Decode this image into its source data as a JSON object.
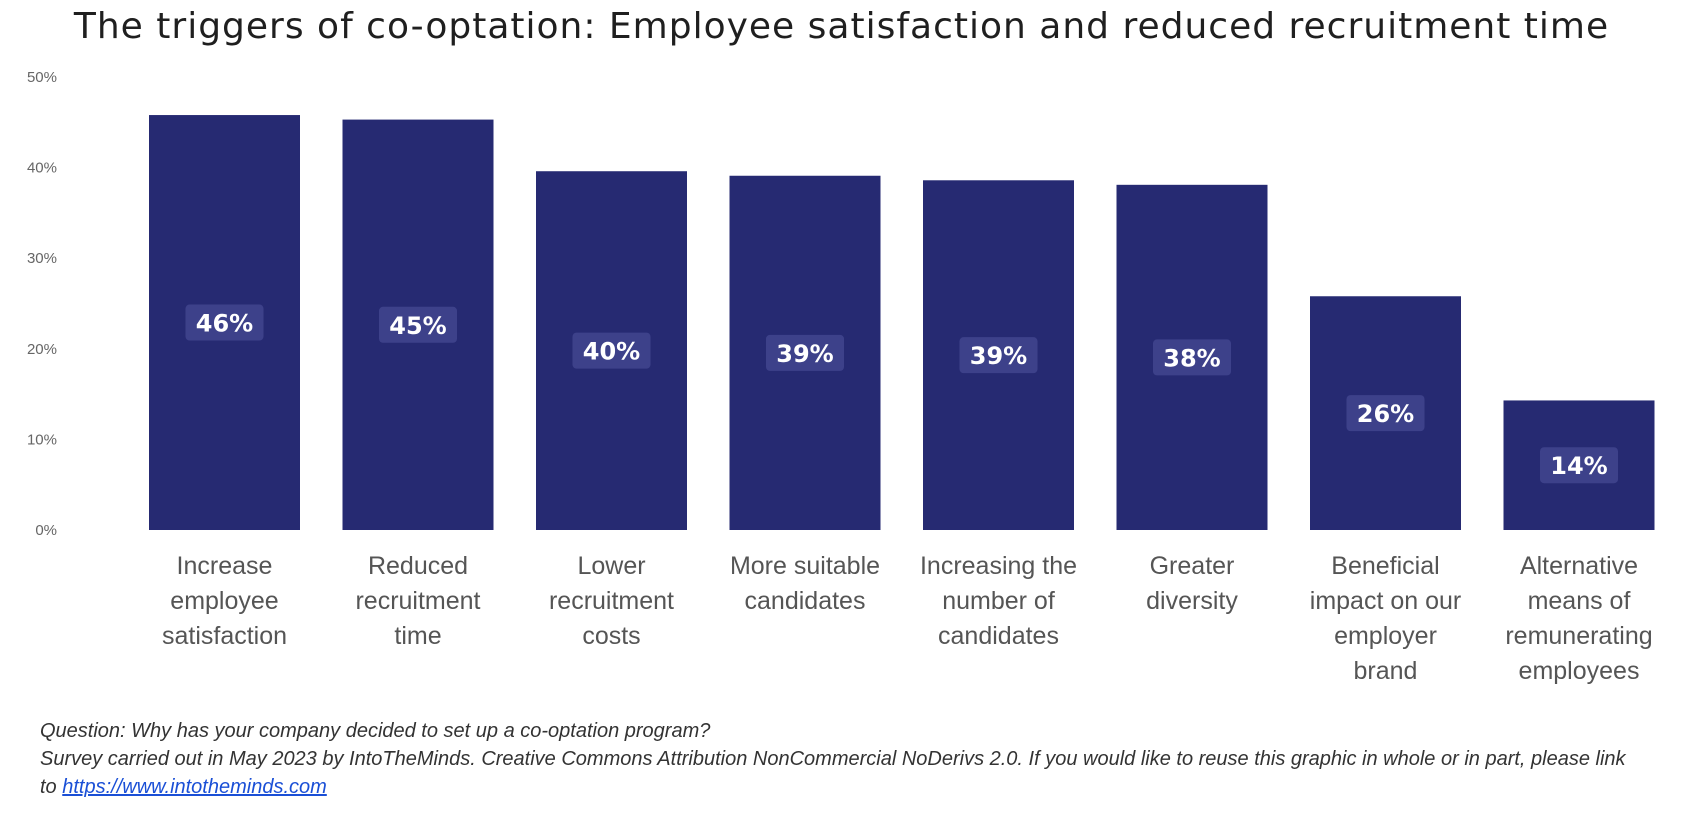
{
  "chart_data": {
    "type": "bar",
    "title": "The triggers of co-optation: Employee satisfaction and reduced recruitment time",
    "categories": [
      "Increase employee satisfaction",
      "Reduced recruitment time",
      "Lower recruitment costs",
      "More suitable candidates",
      "Increasing the number of candidates",
      "Greater diversity",
      "Beneficial impact on our employer brand",
      "Alternative means of remunerating employees"
    ],
    "category_lines": [
      [
        "Increase",
        "employee",
        "satisfaction"
      ],
      [
        "Reduced",
        "recruitment",
        "time"
      ],
      [
        "Lower",
        "recruitment",
        "costs"
      ],
      [
        "More suitable",
        "candidates"
      ],
      [
        "Increasing the",
        "number of",
        "candidates"
      ],
      [
        "Greater",
        "diversity"
      ],
      [
        "Beneficial",
        "impact on our",
        "employer",
        "brand"
      ],
      [
        "Alternative",
        "means of",
        "remunerating",
        "employees"
      ]
    ],
    "values": [
      45.8,
      45.3,
      39.6,
      39.1,
      38.6,
      38.1,
      25.8,
      14.3
    ],
    "value_labels": [
      "46%",
      "45%",
      "40%",
      "39%",
      "39%",
      "38%",
      "26%",
      "14%"
    ],
    "ylim": [
      0,
      50
    ],
    "yticks": [
      "0%",
      "10%",
      "20%",
      "30%",
      "40%",
      "50%"
    ],
    "xlabel": "",
    "ylabel": "",
    "grid": false,
    "legend": "none",
    "colors": {
      "bar": "#262a72",
      "label_bg": "#3d418a",
      "label_text": "#ffffff",
      "tick_text": "#666666",
      "category_text": "#555555"
    }
  },
  "footnote": {
    "question": "Question: Why has your company decided to set up a co-optation program?",
    "survey": "Survey carried out in May 2023 by IntoTheMinds. Creative Commons Attribution NonCommercial NoDerivs 2.0. If you would like to reuse this graphic in whole or in part, please link",
    "link_prefix": "to ",
    "link_text": "https://www.intotheminds.com"
  }
}
